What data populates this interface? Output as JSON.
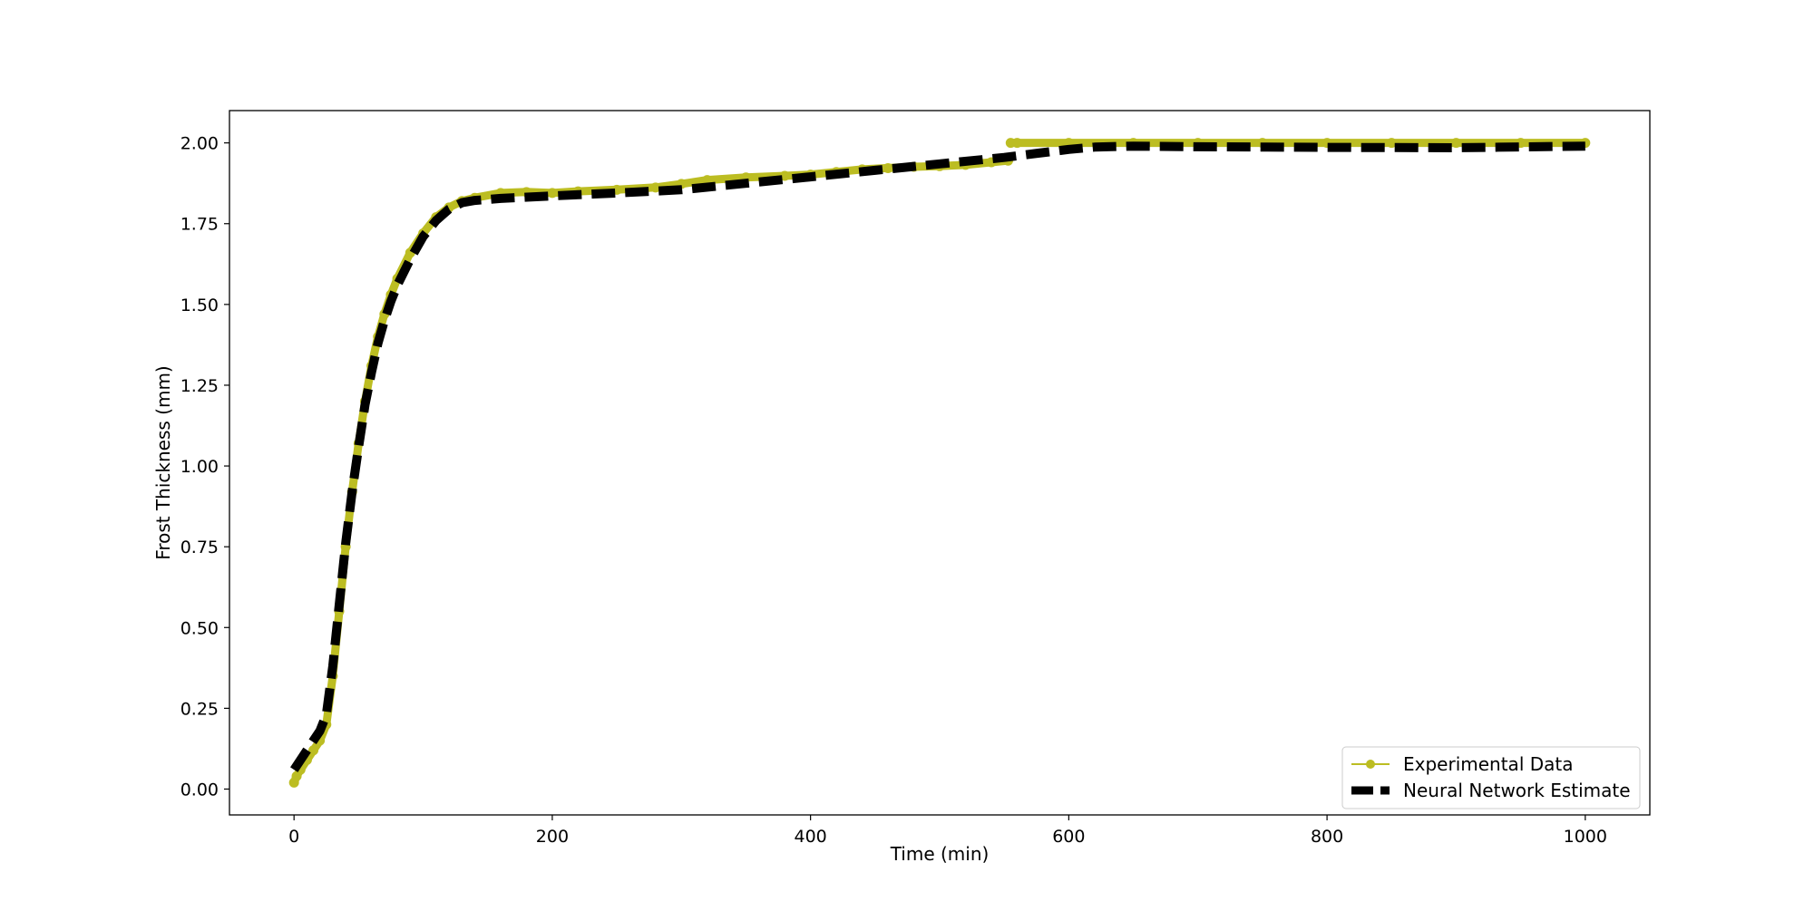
{
  "chart_data": {
    "type": "line",
    "title": "",
    "xlabel": "Time (min)",
    "ylabel": "Frost Thickness (mm)",
    "xlim": [
      -50,
      1050
    ],
    "ylim": [
      -0.08,
      2.1
    ],
    "xticks": [
      0,
      200,
      400,
      600,
      800,
      1000
    ],
    "xtick_labels": [
      "0",
      "200",
      "400",
      "600",
      "800",
      "1000"
    ],
    "yticks": [
      0.0,
      0.25,
      0.5,
      0.75,
      1.0,
      1.25,
      1.5,
      1.75,
      2.0
    ],
    "ytick_labels": [
      "0.00",
      "0.25",
      "0.50",
      "0.75",
      "1.00",
      "1.25",
      "1.50",
      "1.75",
      "2.00"
    ],
    "grid": false,
    "legend_position": "lower-right",
    "series": [
      {
        "name": "Experimental Data",
        "color": "#bcbd22",
        "style": "solid-with-markers",
        "x": [
          0,
          2,
          5,
          10,
          15,
          20,
          25,
          30,
          35,
          40,
          45,
          50,
          55,
          60,
          65,
          70,
          75,
          80,
          90,
          100,
          110,
          120,
          130,
          140,
          160,
          180,
          200,
          220,
          250,
          280,
          300,
          320,
          350,
          380,
          400,
          420,
          440,
          460,
          480,
          500,
          520,
          540,
          553,
          555,
          560,
          600,
          650,
          700,
          750,
          800,
          850,
          900,
          950,
          1000
        ],
        "y": [
          0.02,
          0.04,
          0.06,
          0.09,
          0.12,
          0.15,
          0.2,
          0.35,
          0.55,
          0.75,
          0.92,
          1.07,
          1.2,
          1.31,
          1.4,
          1.47,
          1.53,
          1.58,
          1.66,
          1.72,
          1.77,
          1.8,
          1.82,
          1.83,
          1.845,
          1.848,
          1.845,
          1.85,
          1.855,
          1.862,
          1.873,
          1.885,
          1.893,
          1.898,
          1.902,
          1.91,
          1.918,
          1.922,
          1.926,
          1.928,
          1.932,
          1.94,
          1.945,
          2.0,
          2.0,
          2.0,
          2.0,
          2.0,
          2.0,
          2.0,
          2.0,
          2.0,
          2.0,
          2.0
        ]
      },
      {
        "name": "Neural Network Estimate",
        "color": "#000000",
        "style": "dashed",
        "x": [
          0,
          5,
          10,
          15,
          20,
          25,
          30,
          35,
          40,
          45,
          50,
          55,
          60,
          65,
          70,
          75,
          80,
          90,
          100,
          110,
          120,
          130,
          140,
          160,
          200,
          250,
          300,
          350,
          400,
          450,
          500,
          550,
          600,
          620,
          650,
          700,
          800,
          900,
          1000
        ],
        "y": [
          0.06,
          0.09,
          0.12,
          0.15,
          0.18,
          0.23,
          0.38,
          0.57,
          0.76,
          0.92,
          1.06,
          1.19,
          1.29,
          1.38,
          1.45,
          1.51,
          1.56,
          1.64,
          1.71,
          1.76,
          1.795,
          1.815,
          1.822,
          1.828,
          1.836,
          1.845,
          1.855,
          1.875,
          1.895,
          1.915,
          1.935,
          1.955,
          1.98,
          1.987,
          1.99,
          1.988,
          1.986,
          1.985,
          1.99
        ]
      }
    ]
  }
}
